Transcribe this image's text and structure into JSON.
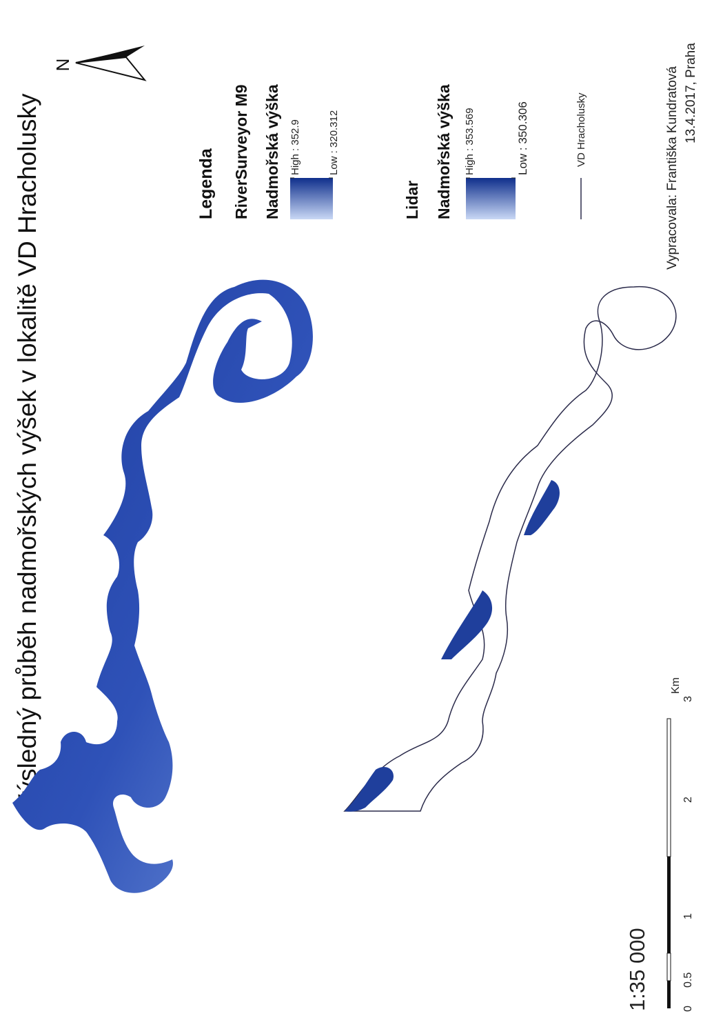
{
  "map_title": "Výsledný průběh nadmořských výšek v lokalitě VD Hracholusky",
  "north_arrow": {
    "label": "N",
    "icon": "north-arrow-icon"
  },
  "legend": {
    "title": "Legenda",
    "riversurveyor": {
      "name": "RiverSurveyor M9",
      "field": "Nadmořská výška",
      "high": "High : 352.9",
      "low": "Low : 320.312"
    },
    "lidar": {
      "name": "Lidar",
      "field": "Nadmořská výška",
      "high": "High : 353.569",
      "low": "Low : 350.306"
    },
    "outline": {
      "label": "VD Hracholusky"
    }
  },
  "author": {
    "line1": "Vypracovala: Františka Kundratová",
    "line2": "13.4.2017, Praha"
  },
  "scalebar": {
    "unit": "Km",
    "ticks": [
      "0",
      "0.5",
      "1",
      "2",
      "3"
    ]
  },
  "scale_ratio": "1:35 000",
  "colors": {
    "ramp_high": "#c9d8f5",
    "ramp_low": "#0f2f8c",
    "outline": "#2a2a4a"
  }
}
